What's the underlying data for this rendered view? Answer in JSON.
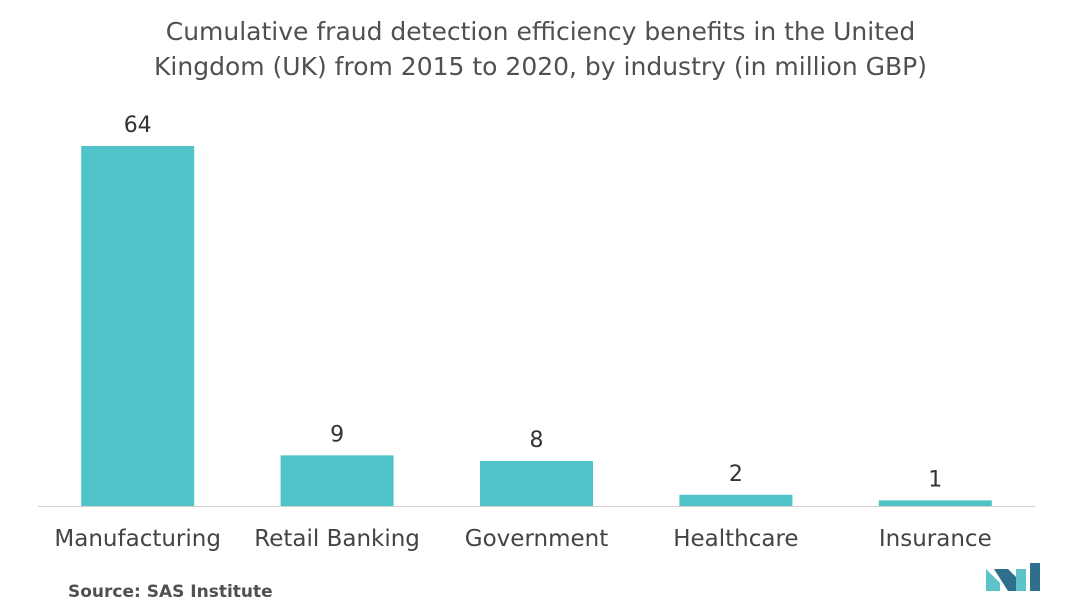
{
  "title_lines": [
    "Cumulative fraud detection efficiency benefits in the United",
    "Kingdom (UK) from 2015 to 2020, by industry (in million GBP)"
  ],
  "source": "Source: SAS Institute",
  "colors": {
    "bar": "#4FC3C8",
    "axis": "#D0D0D0",
    "logo_dark": "#2F6E8C",
    "logo_light": "#5CC3C9"
  },
  "logo_icon": "mordor-intelligence-logo-icon",
  "chart_data": {
    "type": "bar",
    "title": "Cumulative fraud detection efficiency benefits in the United Kingdom (UK) from 2015 to 2020, by industry (in million GBP)",
    "categories": [
      "Manufacturing",
      "Retail Banking",
      "Government",
      "Healthcare",
      "Insurance"
    ],
    "values": [
      64,
      9,
      8,
      2,
      1
    ],
    "data_labels": [
      "64",
      "9",
      "8",
      "2",
      "1"
    ],
    "xlabel": "",
    "ylabel": "",
    "ylim": [
      0,
      64
    ],
    "grid": false,
    "legend": "none"
  }
}
